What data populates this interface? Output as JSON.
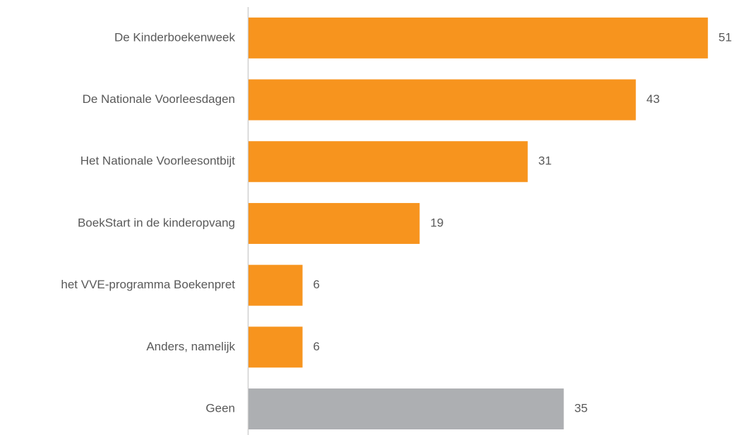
{
  "chart_data": {
    "type": "bar",
    "orientation": "horizontal",
    "categories": [
      "De Kinderboekenweek",
      "De Nationale Voorleesdagen",
      "Het Nationale Voorleesontbijt",
      "BoekStart in de kinderopvang",
      "het VVE-programma Boekenpret",
      "Anders, namelijk",
      "Geen"
    ],
    "values": [
      51,
      43,
      31,
      19,
      6,
      6,
      35
    ],
    "colors": [
      "#f7941e",
      "#f7941e",
      "#f7941e",
      "#f7941e",
      "#f7941e",
      "#f7941e",
      "#adafb2"
    ]
  }
}
